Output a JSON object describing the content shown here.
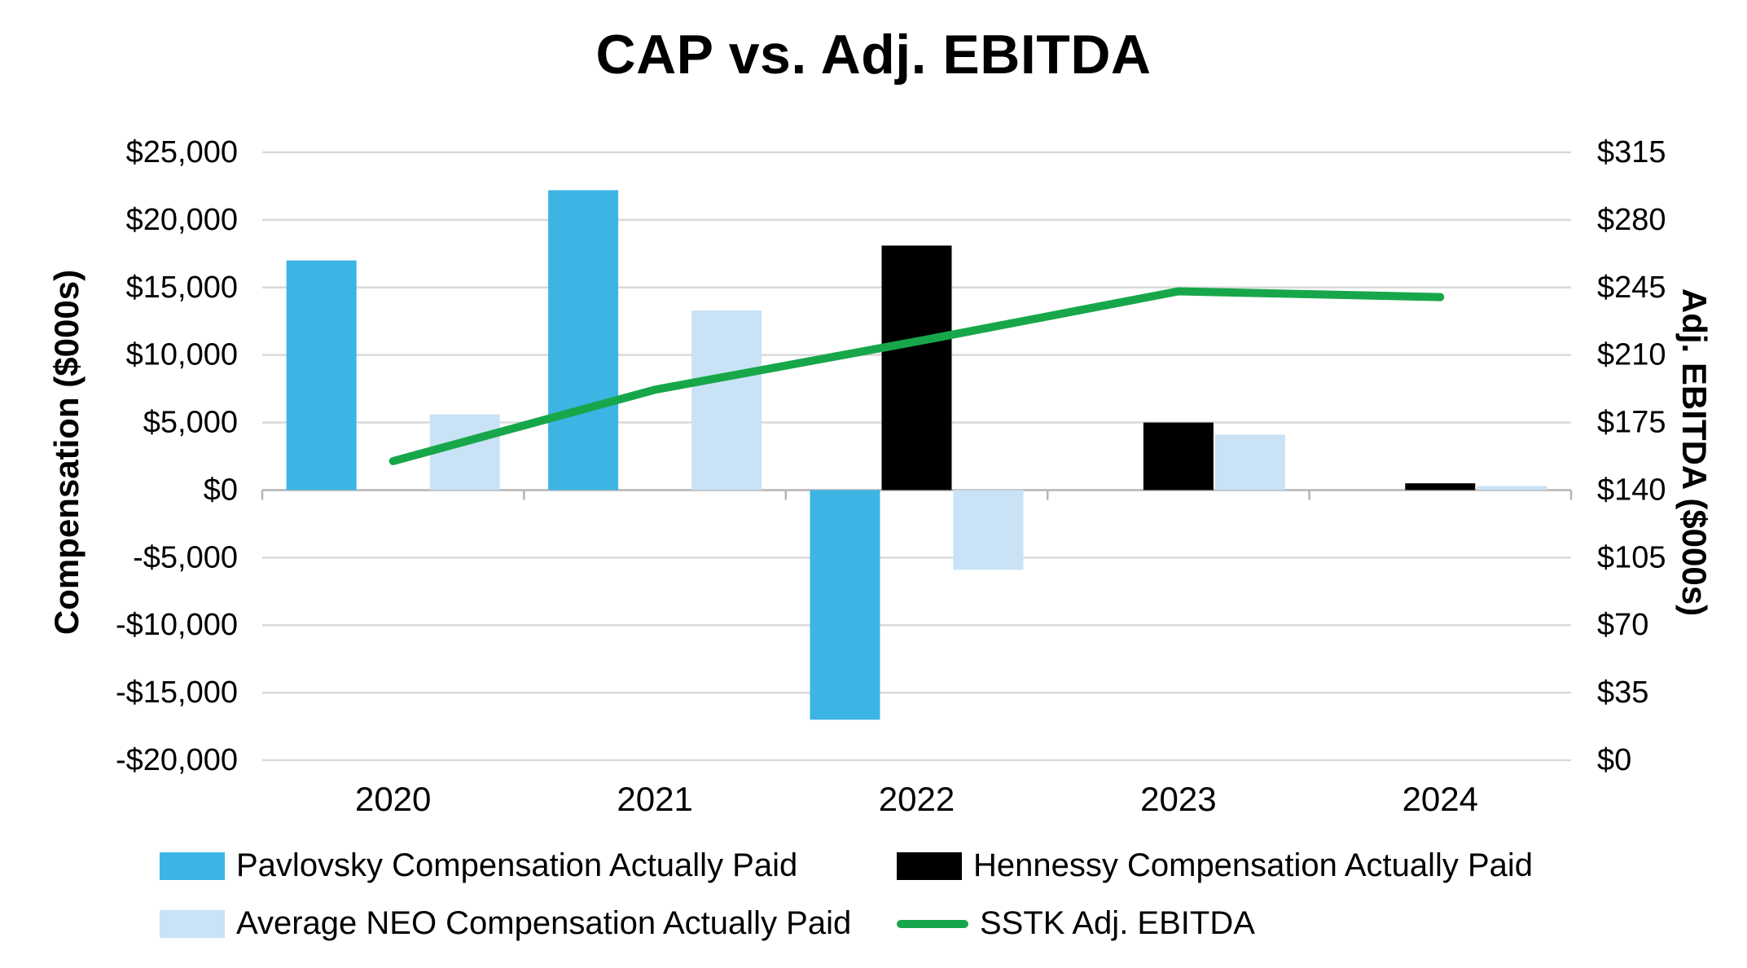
{
  "chart_data": {
    "type": "combo-bar-line",
    "title": "CAP vs. Adj. EBITDA",
    "categories": [
      "2020",
      "2021",
      "2022",
      "2023",
      "2024"
    ],
    "left_axis": {
      "label": "Compensation ($000s)",
      "min": -20000,
      "max": 25000,
      "tick_step": 5000,
      "tick_labels": [
        "$25,000",
        "$20,000",
        "$15,000",
        "$10,000",
        "$5,000",
        "$0",
        "-$5,000",
        "-$10,000",
        "-$15,000",
        "-$20,000"
      ]
    },
    "right_axis": {
      "label": "Adj. EBITDA ($000s)",
      "min": 0,
      "max": 315,
      "tick_step": 35,
      "tick_labels": [
        "$315",
        "$280",
        "$245",
        "$210",
        "$175",
        "$140",
        "$105",
        "$70",
        "$35",
        "$0"
      ]
    },
    "grid": true,
    "legend_position": "bottom",
    "bar_series": [
      {
        "name": "Pavlovsky Compensation Actually Paid",
        "color": "#3cb5e5",
        "values": [
          17000,
          22200,
          -17000,
          0,
          0
        ]
      },
      {
        "name": "Hennessy Compensation Actually Paid",
        "color": "#000000",
        "values": [
          0,
          0,
          18100,
          5000,
          500
        ]
      },
      {
        "name": "Average NEO Compensation Actually Paid",
        "color": "#c9e2f6",
        "values": [
          5600,
          13300,
          -5900,
          4100,
          300
        ]
      }
    ],
    "line_series": {
      "name": "SSTK Adj. EBITDA",
      "color": "#17a74a",
      "axis": "right",
      "values": [
        155,
        192,
        217,
        243,
        240
      ]
    },
    "colors": {
      "gridline": "#d9d9d9",
      "zero_axis": "#b5b5b5"
    }
  }
}
